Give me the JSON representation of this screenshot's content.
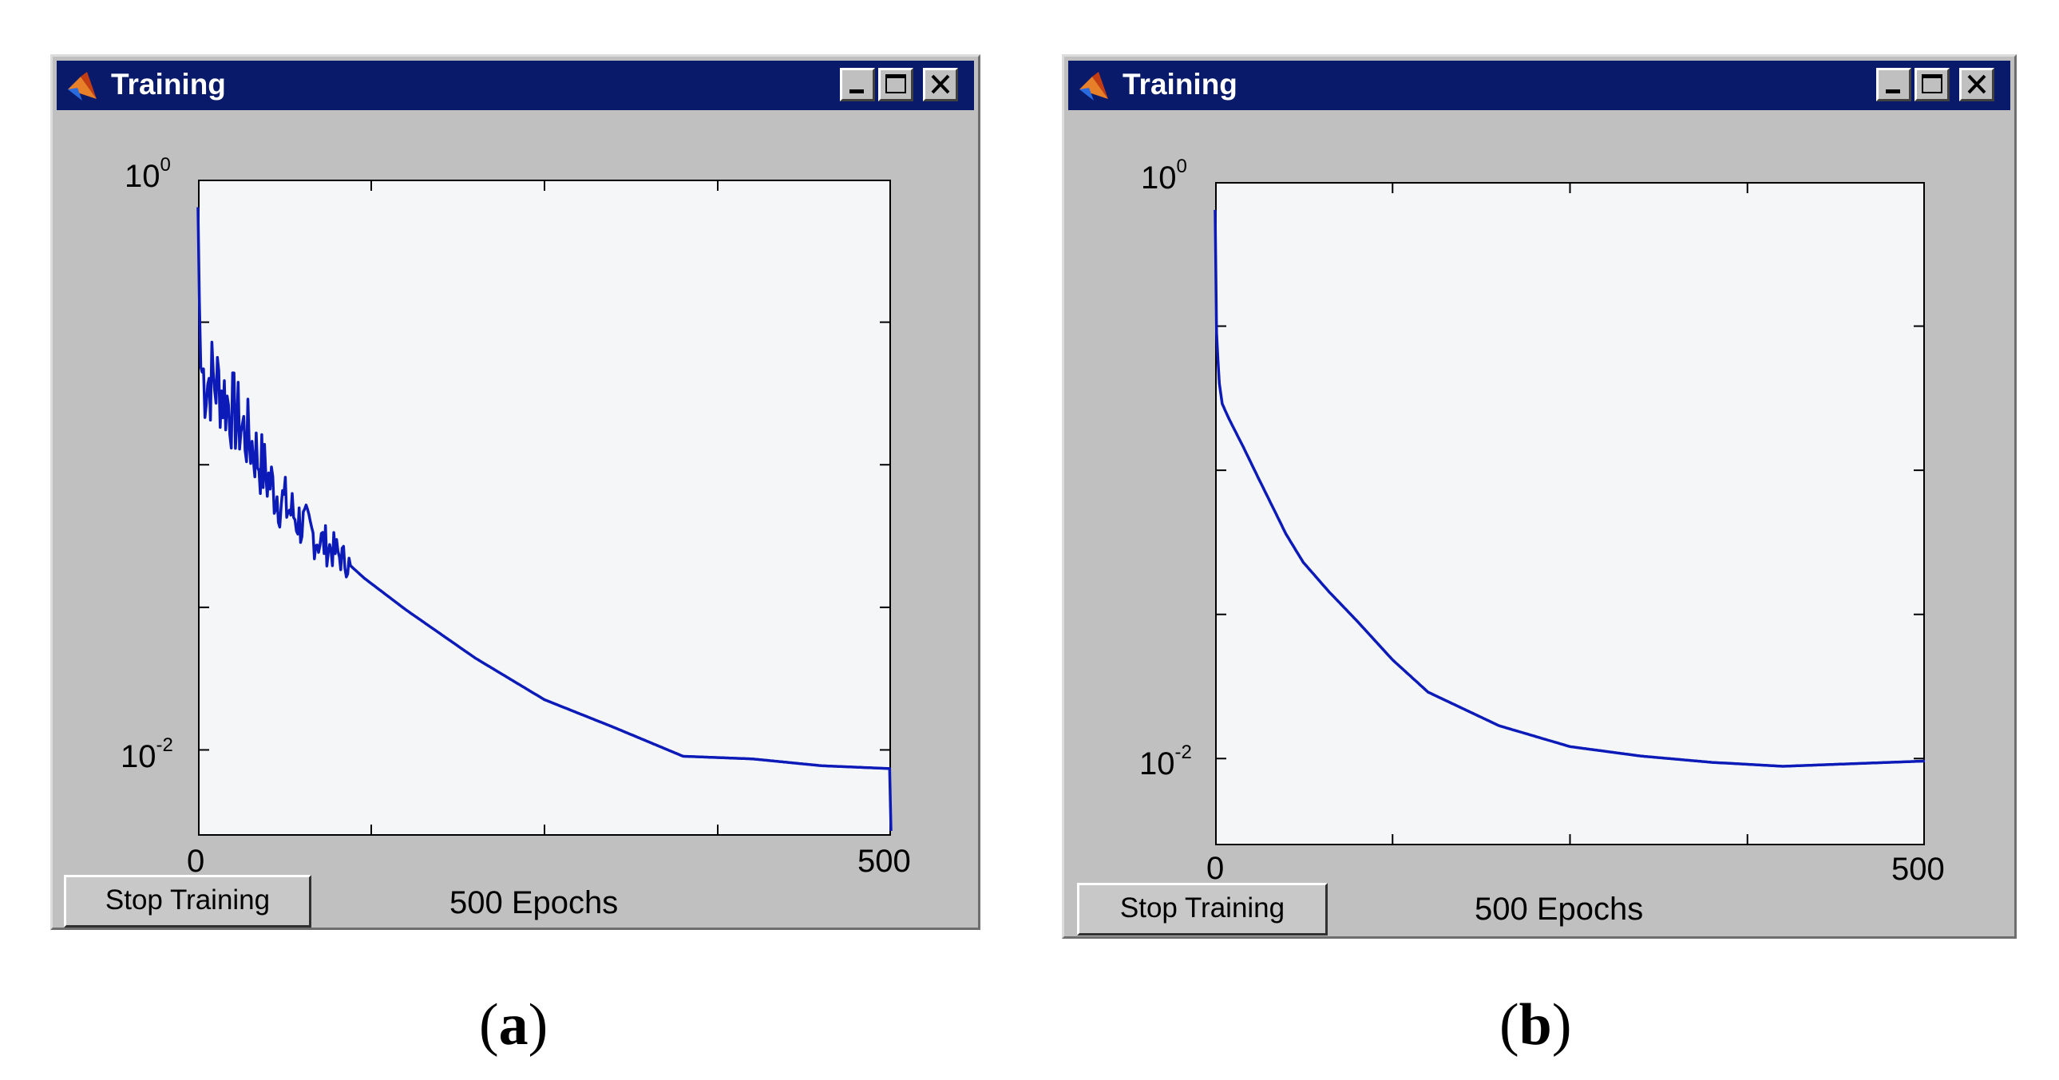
{
  "windows": [
    {
      "id": "a",
      "title": "Training",
      "y_tick_top": "10",
      "y_tick_top_exp": "0",
      "y_tick_bottom": "10",
      "y_tick_bottom_exp": "-2",
      "x_tick_left": "0",
      "x_tick_right": "500",
      "x_label": "500 Epochs",
      "stop_button": "Stop Training",
      "caption_open": "(",
      "caption_letter": "a",
      "caption_close": ")"
    },
    {
      "id": "b",
      "title": "Training",
      "y_tick_top": "10",
      "y_tick_top_exp": "0",
      "y_tick_bottom": "10",
      "y_tick_bottom_exp": "-2",
      "x_tick_left": "0",
      "x_tick_right": "500",
      "x_label": "500 Epochs",
      "stop_button": "Stop Training",
      "caption_open": "(",
      "caption_letter": "b",
      "caption_close": ")"
    }
  ],
  "colors": {
    "titlebar": "#0a1a6a",
    "window_bg": "#c0c0c0",
    "plot_bg": "#f5f6f8",
    "series": "#0c1ab8"
  },
  "icons": [
    "matlab-logo-icon",
    "minimize-icon",
    "maximize-icon",
    "close-icon"
  ],
  "chart_data": [
    {
      "type": "line",
      "yscale": "log",
      "xlim": [
        0,
        500
      ],
      "ylim": [
        0.005,
        1
      ],
      "yticks": [
        0.01,
        1
      ],
      "xticks": [
        0,
        500
      ],
      "xlabel": "500 Epochs",
      "noisy_until": 110,
      "noise_amp": 0.13,
      "x": [
        0,
        1,
        2,
        5,
        10,
        15,
        20,
        30,
        40,
        50,
        60,
        80,
        100,
        120,
        150,
        200,
        250,
        300,
        350,
        400,
        450,
        499,
        500
      ],
      "y": [
        0.8,
        0.38,
        0.22,
        0.2,
        0.2,
        0.19,
        0.17,
        0.14,
        0.115,
        0.09,
        0.075,
        0.058,
        0.049,
        0.04,
        0.031,
        0.021,
        0.015,
        0.012,
        0.0095,
        0.0093,
        0.0088,
        0.0086,
        0.0052
      ]
    },
    {
      "type": "line",
      "yscale": "log",
      "xlim": [
        0,
        500
      ],
      "ylim": [
        0.005,
        1
      ],
      "yticks": [
        0.01,
        1
      ],
      "xticks": [
        0,
        500
      ],
      "xlabel": "500 Epochs",
      "noisy_until": 0,
      "noise_amp": 0,
      "x": [
        0,
        1,
        2,
        3,
        5,
        10,
        20,
        30,
        50,
        62,
        80,
        100,
        125,
        150,
        200,
        250,
        300,
        350,
        400,
        450,
        500
      ],
      "y": [
        0.8,
        0.3,
        0.24,
        0.2,
        0.17,
        0.15,
        0.12,
        0.095,
        0.06,
        0.048,
        0.038,
        0.03,
        0.022,
        0.017,
        0.013,
        0.011,
        0.0102,
        0.0097,
        0.0094,
        0.0096,
        0.0098
      ]
    }
  ]
}
